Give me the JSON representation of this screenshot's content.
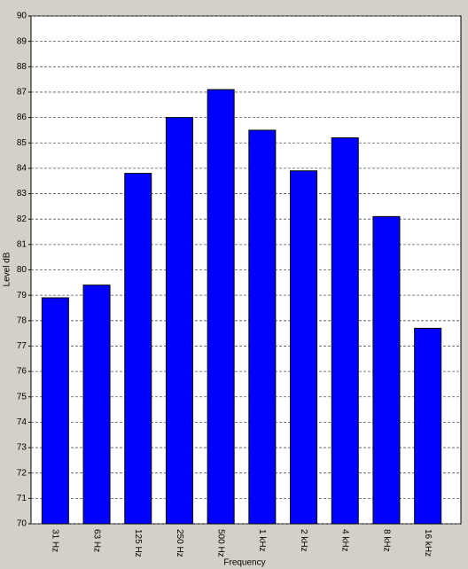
{
  "chart_data": {
    "type": "bar",
    "x_label": "Frequency",
    "y_label": "Level dB",
    "categories": [
      "31 Hz",
      "63 Hz",
      "125 Hz",
      "250 Hz",
      "500 Hz",
      "1 kHz",
      "2 kHz",
      "4 kHz",
      "8 kHz",
      "16 kHz"
    ],
    "values": [
      78.9,
      79.4,
      83.8,
      86.0,
      87.1,
      85.5,
      83.9,
      85.2,
      82.1,
      77.7
    ],
    "color": "#0000ff",
    "ylim": [
      70,
      90
    ],
    "yticks": [
      70,
      71,
      72,
      73,
      74,
      75,
      76,
      77,
      78,
      79,
      80,
      81,
      82,
      83,
      84,
      85,
      86,
      87,
      88,
      89,
      90
    ],
    "grid": true
  }
}
